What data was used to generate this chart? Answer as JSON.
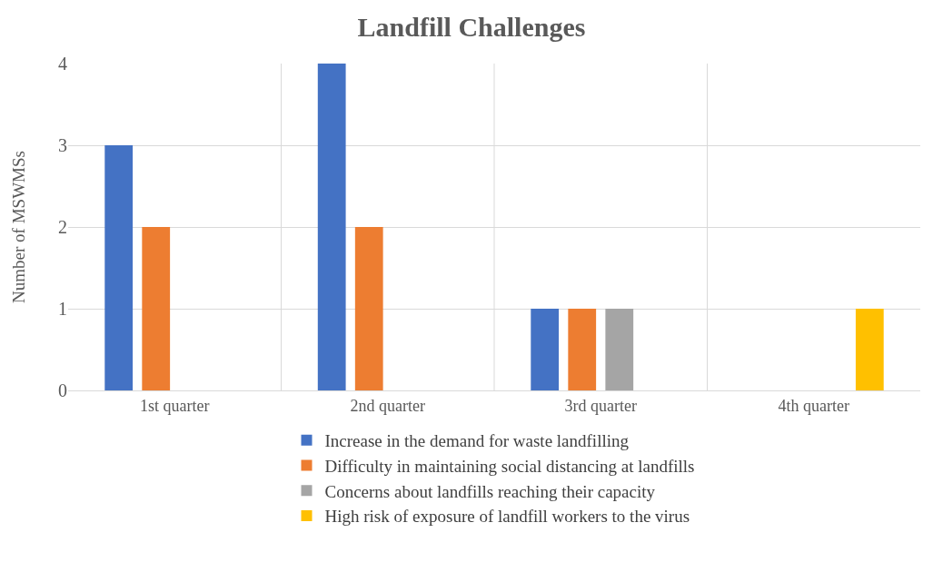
{
  "chart_data": {
    "type": "bar",
    "title": "Landfill Challenges",
    "ylabel": "Number of MSWMSs",
    "categories": [
      "1st quarter",
      "2nd quarter",
      "3rd quarter",
      "4th quarter"
    ],
    "series": [
      {
        "name": "Increase in the demand for waste landfilling",
        "color": "#4472c4",
        "values": [
          3,
          4,
          1,
          0
        ]
      },
      {
        "name": "Difficulty in maintaining social distancing at landfills",
        "color": "#ed7d31",
        "values": [
          2,
          2,
          1,
          0
        ]
      },
      {
        "name": "Concerns about landfills reaching their capacity",
        "color": "#a5a5a5",
        "values": [
          0,
          0,
          1,
          0
        ]
      },
      {
        "name": "High risk of exposure of landfill workers to the virus",
        "color": "#ffc000",
        "values": [
          0,
          0,
          0,
          1
        ]
      }
    ],
    "ylim": [
      0,
      4
    ],
    "yticks": [
      0,
      1,
      2,
      3,
      4
    ],
    "grid": true,
    "legend": "bottom"
  }
}
